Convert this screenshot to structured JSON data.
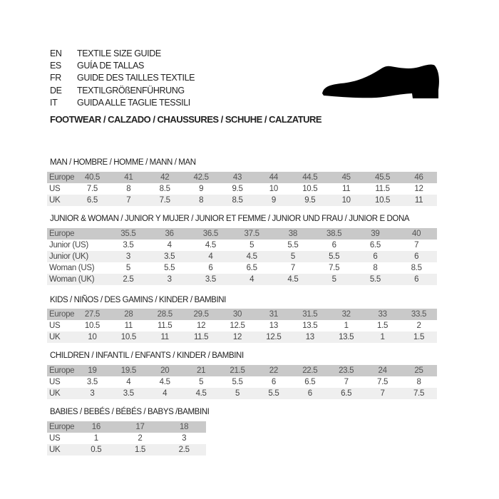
{
  "guide_titles": [
    {
      "code": "EN",
      "title": "TEXTILE SIZE GUIDE"
    },
    {
      "code": "ES",
      "title": "GUÍA DE TALLAS"
    },
    {
      "code": "FR",
      "title": "GUIDE DES TAILLES TEXTILE"
    },
    {
      "code": "DE",
      "title": "TEXTILGRÖßENFÜHRUNG"
    },
    {
      "code": "IT",
      "title": "GUIDA ALLE TAGLIE TESSILI"
    }
  ],
  "footwear_title": "FOOTWEAR / CALZADO / CHAUSSURES / SCHUHE / CALZATURE",
  "shoe_icon": "shoe-silhouette-icon",
  "colors": {
    "header_row": "#c9c9c9",
    "alt_row": "#efefef"
  },
  "sections": [
    {
      "title": "MAN / HOMBRE / HOMME / MANN / MAN",
      "rows": [
        {
          "label": "Europe",
          "values": [
            "40.5",
            "41",
            "42",
            "42.5",
            "43",
            "44",
            "44.5",
            "45",
            "45.5",
            "46"
          ]
        },
        {
          "label": "US",
          "values": [
            "7.5",
            "8",
            "8.5",
            "9",
            "9.5",
            "10",
            "10.5",
            "11",
            "11.5",
            "12"
          ]
        },
        {
          "label": "UK",
          "values": [
            "6.5",
            "7",
            "7.5",
            "8",
            "8.5",
            "9",
            "9.5",
            "10",
            "10.5",
            "11"
          ]
        }
      ]
    },
    {
      "title": "JUNIOR & WOMAN / JUNIOR Y MUJER / JUNIOR ET FEMME / JUNIOR UND FRAU / JUNIOR E DONA",
      "rows": [
        {
          "label": "Europe",
          "values": [
            "35.5",
            "36",
            "36.5",
            "37.5",
            "38",
            "38.5",
            "39",
            "40"
          ]
        },
        {
          "label": "Junior (US)",
          "values": [
            "3.5",
            "4",
            "4.5",
            "5",
            "5.5",
            "6",
            "6.5",
            "7"
          ]
        },
        {
          "label": "Junior (UK)",
          "values": [
            "3",
            "3.5",
            "4",
            "4.5",
            "5",
            "5.5",
            "6",
            "6"
          ]
        },
        {
          "label": "Woman (US)",
          "values": [
            "5",
            "5.5",
            "6",
            "6.5",
            "7",
            "7.5",
            "8",
            "8.5"
          ]
        },
        {
          "label": "Woman (UK)",
          "values": [
            "2.5",
            "3",
            "3.5",
            "4",
            "4.5",
            "5",
            "5.5",
            "6"
          ]
        }
      ]
    },
    {
      "title": "KIDS / NIÑOS / DES GAMINS / KINDER / BAMBINI",
      "rows": [
        {
          "label": "Europe",
          "values": [
            "27.5",
            "28",
            "28.5",
            "29.5",
            "30",
            "31",
            "31.5",
            "32",
            "33",
            "33.5"
          ]
        },
        {
          "label": "US",
          "values": [
            "10.5",
            "11",
            "11.5",
            "12",
            "12.5",
            "13",
            "13.5",
            "1",
            "1.5",
            "2"
          ]
        },
        {
          "label": "UK",
          "values": [
            "10",
            "10.5",
            "11",
            "11.5",
            "12",
            "12.5",
            "13",
            "13.5",
            "1",
            "1.5"
          ]
        }
      ]
    },
    {
      "title": "CHILDREN / INFANTIL / ENFANTS / KINDER / BAMBINI",
      "rows": [
        {
          "label": "Europe",
          "values": [
            "19",
            "19.5",
            "20",
            "21",
            "21.5",
            "22",
            "22.5",
            "23.5",
            "24",
            "25"
          ]
        },
        {
          "label": "US",
          "values": [
            "3.5",
            "4",
            "4.5",
            "5",
            "5.5",
            "6",
            "6.5",
            "7",
            "7.5",
            "8"
          ]
        },
        {
          "label": "UK",
          "values": [
            "3",
            "3.5",
            "4",
            "4.5",
            "5",
            "5.5",
            "6",
            "6.5",
            "7",
            "7.5"
          ]
        }
      ]
    },
    {
      "title": "BABIES  / BEBÉS / BÉBÉS / BABYS /BAMBINI",
      "rows": [
        {
          "label": "Europe",
          "values": [
            "16",
            "17",
            "18"
          ]
        },
        {
          "label": "US",
          "values": [
            "1",
            "2",
            "3"
          ]
        },
        {
          "label": "UK",
          "values": [
            "0.5",
            "1.5",
            "2.5"
          ]
        }
      ]
    }
  ]
}
